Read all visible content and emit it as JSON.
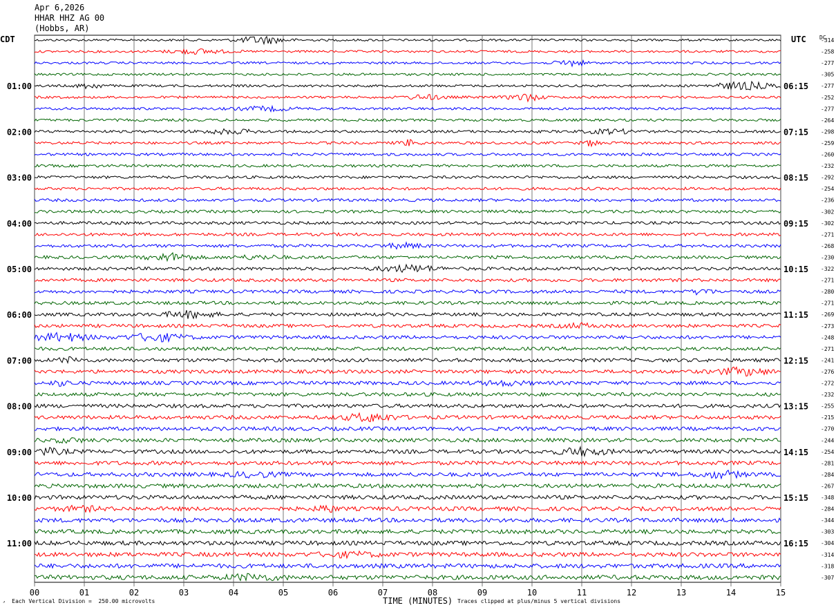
{
  "header": {
    "date": "Apr 6,2026",
    "station": "HHAR HHZ AG 00",
    "location": "(Hobbs, AR)"
  },
  "left_zone": "CDT",
  "right_zone": "UTC",
  "dc_label": "DC",
  "x_axis_title": "TIME (MINUTES)",
  "footer_left": "Each Vertical Division =  250.00 microvolts",
  "footer_right": "Traces clipped at plus/minus 5 vertical divisions",
  "trace_colors": [
    "#000000",
    "#ff0000",
    "#0000ff",
    "#006400"
  ],
  "chart_data": {
    "type": "line",
    "xlabel": "TIME (MINUTES)",
    "xlim": [
      0,
      15
    ],
    "x_ticks": [
      "00",
      "01",
      "02",
      "03",
      "04",
      "05",
      "06",
      "07",
      "08",
      "09",
      "10",
      "11",
      "12",
      "13",
      "14",
      "15"
    ],
    "left_hour_labels": [
      "01:00",
      "02:00",
      "03:00",
      "04:00",
      "05:00",
      "06:00",
      "07:00",
      "08:00",
      "09:00",
      "10:00",
      "11:00"
    ],
    "right_hour_labels": [
      "06:15",
      "07:15",
      "08:15",
      "09:15",
      "10:15",
      "11:15",
      "12:15",
      "13:15",
      "14:15",
      "15:15",
      "16:15"
    ],
    "dc_offsets": [
      "-314",
      "-258",
      "-277",
      "-305",
      "-277",
      "-252",
      "-277",
      "-264",
      "-298",
      "-259",
      "-260",
      "-232",
      "-292",
      "-254",
      "-236",
      "-302",
      "-302",
      "-271",
      "-268",
      "-230",
      "-322",
      "-271",
      "-280",
      "-271",
      "-269",
      "-273",
      "-248",
      "-271",
      "-241",
      "-276",
      "-272",
      "-232",
      "-255",
      "-215",
      "-270",
      "-244",
      "-254",
      "-281",
      "-284",
      "-267",
      "-348",
      "-284",
      "-344",
      "-303",
      "-304",
      "-314",
      "-318",
      "-307"
    ],
    "trace_count": 48,
    "grid": true
  }
}
